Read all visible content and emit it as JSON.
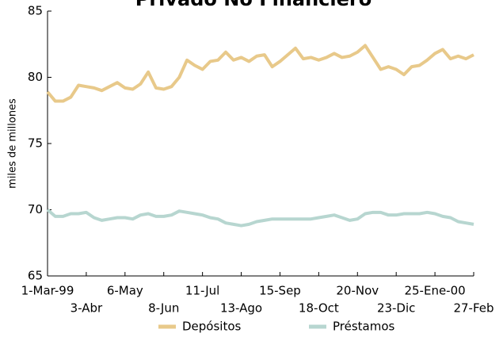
{
  "chart_data": {
    "type": "line",
    "title": "Privado No Financiero",
    "y_label": "miles de millones",
    "categories": [
      "1-Mar-99",
      null,
      null,
      null,
      null,
      "3-Abr",
      null,
      null,
      null,
      null,
      "6-May",
      null,
      null,
      null,
      null,
      "8-Jun",
      null,
      null,
      null,
      null,
      "11-Jul",
      null,
      null,
      null,
      null,
      "13-Ago",
      null,
      null,
      null,
      null,
      "15-Sep",
      null,
      null,
      null,
      null,
      "18-Oct",
      null,
      null,
      null,
      null,
      "20-Nov",
      null,
      null,
      null,
      null,
      "23-Dic",
      null,
      null,
      null,
      null,
      "25-Ene-00",
      null,
      null,
      null,
      null,
      "27-Feb"
    ],
    "series": [
      {
        "name": "Depósitos",
        "color": "#e8c98a",
        "values": [
          78.9,
          78.2,
          78.2,
          78.5,
          79.4,
          79.3,
          79.2,
          79.0,
          79.3,
          79.6,
          79.2,
          79.1,
          79.5,
          80.4,
          79.2,
          79.1,
          79.3,
          80.0,
          81.3,
          80.9,
          80.6,
          81.2,
          81.3,
          81.9,
          81.3,
          81.5,
          81.2,
          81.6,
          81.7,
          80.8,
          81.2,
          81.7,
          82.2,
          81.4,
          81.5,
          81.3,
          81.5,
          81.8,
          81.5,
          81.6,
          81.9,
          82.4,
          81.5,
          80.6,
          80.8,
          80.6,
          80.2,
          80.8,
          80.9,
          81.3,
          81.8,
          82.1,
          81.4,
          81.6,
          81.4,
          81.7
        ]
      },
      {
        "name": "Préstamos",
        "color": "#b7d6d0",
        "values": [
          70.0,
          69.5,
          69.5,
          69.7,
          69.7,
          69.8,
          69.4,
          69.2,
          69.3,
          69.4,
          69.4,
          69.3,
          69.6,
          69.7,
          69.5,
          69.5,
          69.6,
          69.9,
          69.8,
          69.7,
          69.6,
          69.4,
          69.3,
          69.0,
          68.9,
          68.8,
          68.9,
          69.1,
          69.2,
          69.3,
          69.3,
          69.3,
          69.3,
          69.3,
          69.3,
          69.4,
          69.5,
          69.6,
          69.4,
          69.2,
          69.3,
          69.7,
          69.8,
          69.8,
          69.6,
          69.6,
          69.7,
          69.7,
          69.7,
          69.8,
          69.7,
          69.5,
          69.4,
          69.1,
          69.0,
          68.9
        ]
      }
    ],
    "ylim": [
      65,
      85
    ],
    "yticks": [
      65,
      70,
      75,
      80,
      85
    ]
  }
}
